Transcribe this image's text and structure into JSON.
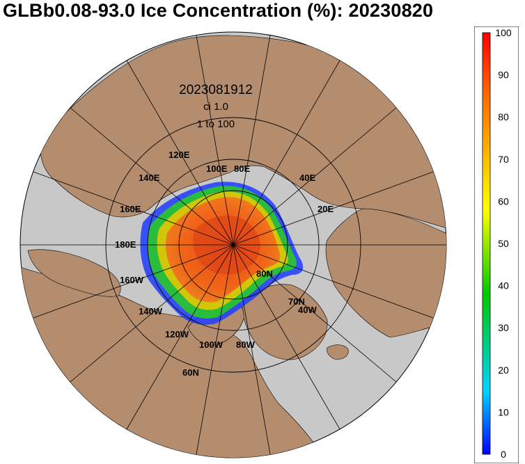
{
  "title": "GLBb0.08-93.0 Ice Concentration (%): 20230820",
  "map": {
    "valid_time": "2023081912",
    "contour_interval": "ci 1.0",
    "range_label": "1 to 100",
    "longitude_labels": [
      "120E",
      "140E",
      "100E",
      "80E",
      "40E",
      "20E",
      "160E",
      "180E",
      "160W",
      "140W",
      "120W",
      "100W",
      "80W",
      "40W"
    ],
    "latitude_labels": [
      "80N",
      "70N",
      "60N"
    ],
    "colors": {
      "ocean": "#c8c8c8",
      "land": "#b48c6e",
      "ice_core": "#f05a14",
      "ice_edge_green": "#28c828",
      "ice_edge_blue": "#1e3cff",
      "grid": "#000000"
    }
  },
  "colorbar": {
    "ticks": [
      "100",
      "90",
      "80",
      "70",
      "60",
      "50",
      "40",
      "30",
      "20",
      "10",
      "0"
    ],
    "min": 0,
    "max": 100,
    "stops": [
      "#0000ff",
      "#00d2ff",
      "#00c800",
      "#ffff00",
      "#ffb400",
      "#ff6400",
      "#ff0000"
    ]
  }
}
